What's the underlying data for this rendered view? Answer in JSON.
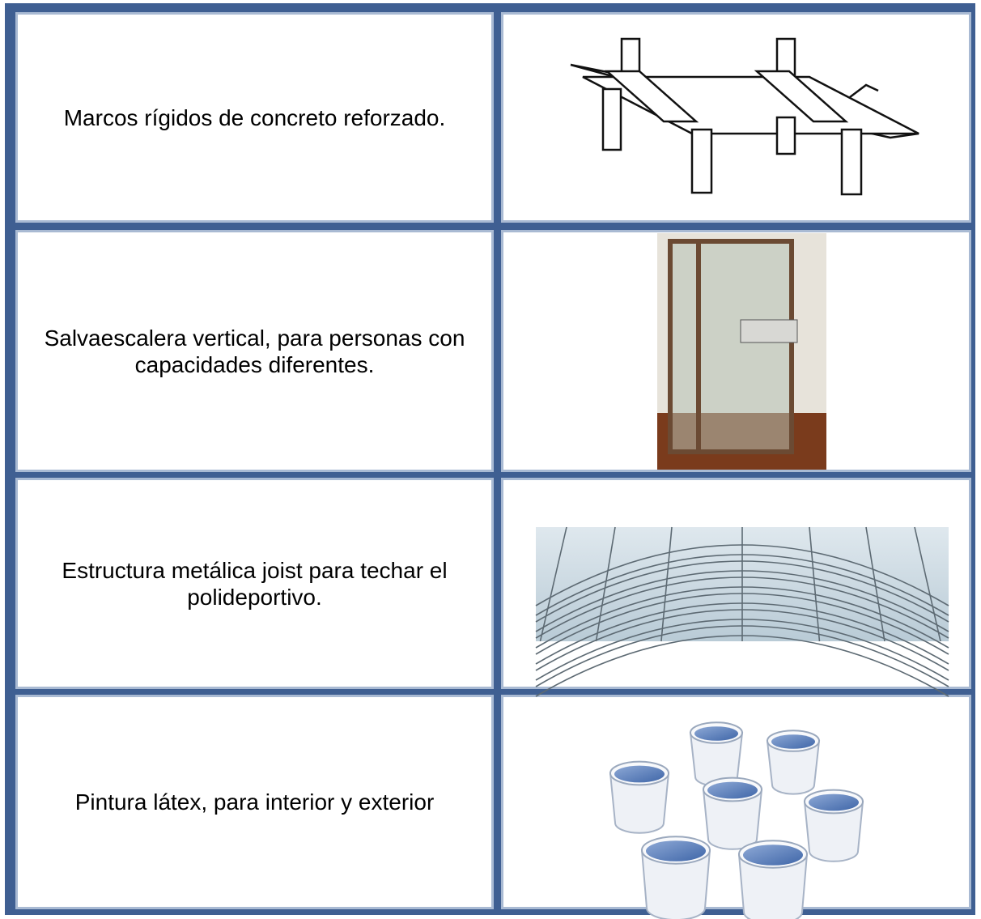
{
  "table": {
    "rows": [
      [
        "Marcos rígidos de concreto reforzado."
      ],
      [
        "Salvaescalera vertical, para personas con capacidades diferentes."
      ],
      [
        "Estructura metálica joist para techar el polideportivo."
      ],
      [
        "Pintura látex, para interior y exterior"
      ]
    ]
  }
}
